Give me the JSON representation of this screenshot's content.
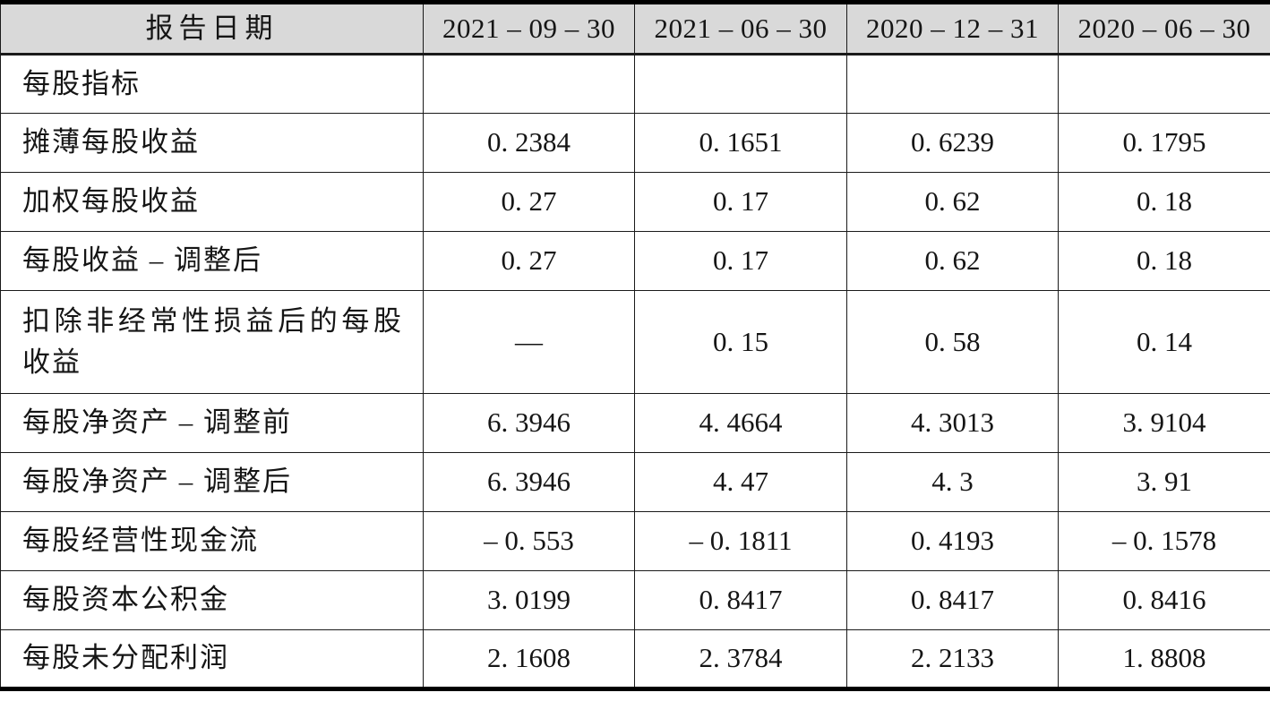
{
  "colors": {
    "header_bg": "#d9d9d9",
    "border": "#1a1a1a",
    "thick_rule": "#000000",
    "text": "#151515"
  },
  "table": {
    "header": {
      "label": "报告日期",
      "columns": [
        "2021 – 09 – 30",
        "2021 – 06 – 30",
        "2020 – 12 – 31",
        "2020 – 06 – 30"
      ]
    },
    "rows": [
      {
        "label": "每股指标",
        "section": true,
        "tall": false,
        "values": [
          "",
          "",
          "",
          ""
        ]
      },
      {
        "label": "摊薄每股收益",
        "section": false,
        "tall": false,
        "values": [
          "0. 2384",
          "0. 1651",
          "0. 6239",
          "0. 1795"
        ]
      },
      {
        "label": "加权每股收益",
        "section": false,
        "tall": false,
        "values": [
          "0. 27",
          "0. 17",
          "0. 62",
          "0. 18"
        ]
      },
      {
        "label": "每股收益 – 调整后",
        "section": false,
        "tall": false,
        "values": [
          "0. 27",
          "0. 17",
          "0. 62",
          "0. 18"
        ]
      },
      {
        "label": "扣除非经常性损益后的每股收益",
        "section": false,
        "tall": true,
        "values": [
          "—",
          "0. 15",
          "0. 58",
          "0. 14"
        ]
      },
      {
        "label": "每股净资产 – 调整前",
        "section": false,
        "tall": false,
        "values": [
          "6. 3946",
          "4. 4664",
          "4. 3013",
          "3. 9104"
        ]
      },
      {
        "label": "每股净资产 – 调整后",
        "section": false,
        "tall": false,
        "values": [
          "6. 3946",
          "4. 47",
          "4. 3",
          "3. 91"
        ]
      },
      {
        "label": "每股经营性现金流",
        "section": false,
        "tall": false,
        "values": [
          "– 0. 553",
          "– 0. 1811",
          "0. 4193",
          "– 0. 1578"
        ]
      },
      {
        "label": "每股资本公积金",
        "section": false,
        "tall": false,
        "values": [
          "3. 0199",
          "0. 8417",
          "0. 8417",
          "0. 8416"
        ]
      },
      {
        "label": "每股未分配利润",
        "section": false,
        "tall": false,
        "values": [
          "2. 1608",
          "2. 3784",
          "2. 2133",
          "1. 8808"
        ]
      }
    ]
  }
}
